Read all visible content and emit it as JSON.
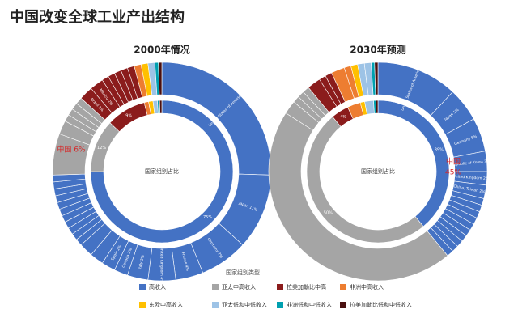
{
  "title": "中国改变全球工业产出结构",
  "legend": {
    "title": "国家组别类型",
    "names": [
      "高收入",
      "亚太中高收入",
      "拉美加勒比中高",
      "非洲中高收入",
      "东欧中高收入",
      "亚太低和中低收入",
      "非洲低和中低收入",
      "拉美加勒比低和中低收入"
    ],
    "colors": [
      "#4472c4",
      "#a5a5a5",
      "#8b1c1c",
      "#ed7d31",
      "#ffc000",
      "#9dc3e6",
      "#00a0b0",
      "#4a1010"
    ]
  },
  "chart_data": [
    {
      "type": "donut",
      "title": "2000年情况",
      "center_label": "国家组别占比",
      "annotation": [
        "中国 6%"
      ],
      "inner_values": [
        75,
        12,
        9,
        1,
        1,
        1,
        0.5,
        0.5
      ],
      "inner_labels": [
        "75%",
        "12%",
        "9%",
        null,
        null,
        null,
        null,
        null
      ],
      "outer_values": [
        [
          25,
          11,
          7,
          4,
          4,
          3,
          2,
          2,
          2,
          2,
          1,
          1,
          1,
          1,
          1,
          1,
          1,
          1,
          1,
          1,
          1
        ],
        [
          6,
          2,
          1,
          1,
          1,
          1
        ],
        [
          2,
          2,
          1,
          1,
          1,
          1,
          1
        ],
        [
          1
        ],
        [
          1
        ],
        [
          1
        ],
        [
          0.5
        ],
        [
          0.5
        ]
      ],
      "outer_labels": [
        [
          "United States of America 25%",
          "Japan 11%",
          "Germany 7%",
          "France 4%",
          "United Kingdom 4%",
          "Italy 3%",
          "Canada 2%",
          "Spain 2%",
          null,
          null,
          null,
          null,
          null,
          null,
          null,
          null,
          null,
          null,
          null,
          null,
          null
        ],
        [
          null,
          null,
          null,
          null,
          null,
          null
        ],
        [
          "Brazil 2%",
          "Mexico 2%",
          null,
          null,
          null,
          null,
          null
        ],
        [
          null
        ],
        [
          null
        ],
        [
          null
        ],
        [
          null
        ],
        [
          null
        ]
      ]
    },
    {
      "type": "donut",
      "title": "2030年预测",
      "center_label": "国家组别占比",
      "annotation": [
        "中国",
        "45%"
      ],
      "inner_values": [
        39,
        50,
        4,
        3,
        1,
        2,
        0.5,
        0.5
      ],
      "inner_labels": [
        "39%",
        "50%",
        "4%",
        null,
        null,
        null,
        null,
        null
      ],
      "outer_values": [
        [
          12,
          5,
          5,
          3,
          2,
          2,
          1,
          1,
          1,
          1,
          1,
          1,
          1,
          1,
          1,
          1
        ],
        [
          45,
          2,
          1,
          1,
          1
        ],
        [
          2,
          1,
          1
        ],
        [
          2,
          1
        ],
        [
          1
        ],
        [
          1,
          1
        ],
        [
          0.5
        ],
        [
          0.5
        ]
      ],
      "outer_labels": [
        [
          "United States of America 12%",
          "Japan 5%",
          "Germany 5%",
          "Republic of Korea 3%",
          "United Kingdom 2%",
          "China, Taiwan 2%",
          null,
          null,
          null,
          null,
          null,
          null,
          null,
          null,
          null,
          null
        ],
        [
          null,
          null,
          null,
          null,
          null
        ],
        [
          null,
          null,
          null
        ],
        [
          null,
          null
        ],
        [
          null
        ],
        [
          null,
          null
        ],
        [
          null
        ],
        [
          null
        ]
      ]
    }
  ]
}
